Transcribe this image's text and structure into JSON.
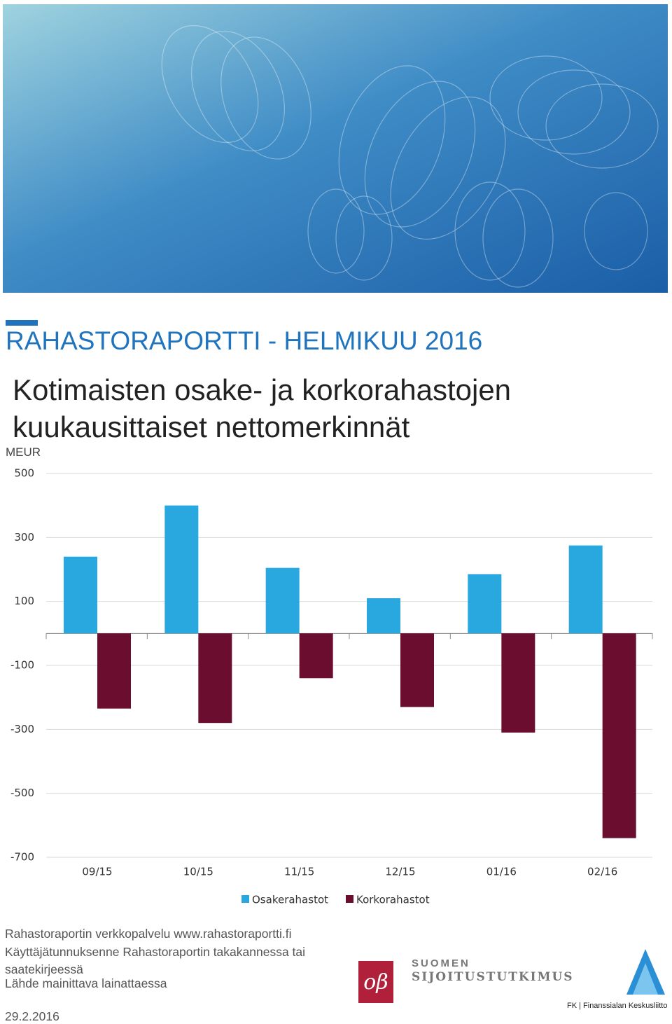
{
  "header": {
    "title": "RAHASTORAPORTTI - HELMIKUU 2016"
  },
  "chart_data": {
    "type": "bar",
    "title": "Kotimaisten osake- ja korkorahastojen kuukausittaiset nettomerkinnät",
    "y_label": "MEUR",
    "categories": [
      "09/15",
      "10/15",
      "11/15",
      "12/15",
      "01/16",
      "02/16"
    ],
    "series": [
      {
        "name": "Osakerahastot",
        "color": "#29a8e0",
        "values": [
          240,
          400,
          205,
          110,
          185,
          275
        ]
      },
      {
        "name": "Korkorahastot",
        "color": "#6b0d2f",
        "values": [
          -235,
          -280,
          -140,
          -230,
          -310,
          -640
        ]
      }
    ],
    "ylim": [
      -700,
      500
    ],
    "yticks": [
      500,
      300,
      100,
      -100,
      -300,
      -500,
      -700
    ],
    "grid": true,
    "legend": "bottom"
  },
  "footer": {
    "lines": [
      "Rahastoraportin verkkopalvelu www.rahastoraportti.fi",
      "Käyttäjätunnuksenne Rahastoraportin takakannessa tai",
      "saatekirjeessä",
      "Lähde mainittava lainattaessa"
    ],
    "date": "29.2.2016",
    "logo_sijoitus": [
      "SUOMEN",
      "SIJOITUSTUTKIMUS"
    ],
    "logo_fk": "FK | Finanssialan Keskusliitto"
  }
}
